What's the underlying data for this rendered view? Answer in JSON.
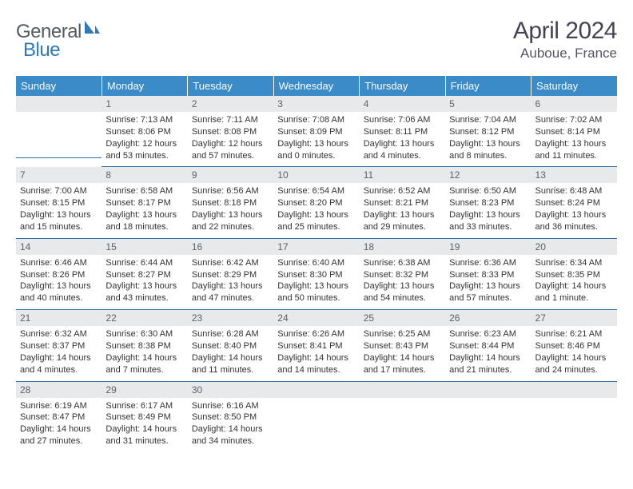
{
  "logo": {
    "text1": "General",
    "text2": "Blue",
    "shape_color": "#2e79b8"
  },
  "title": "April 2024",
  "location": "Auboue, France",
  "palette": {
    "header_bg": "#3b8bc8",
    "header_text": "#ffffff",
    "daynum_bg": "#e7e9eb",
    "daynum_text": "#5b6268",
    "rule_color": "#2f6fa4",
    "body_text": "#333333"
  },
  "day_headers": [
    "Sunday",
    "Monday",
    "Tuesday",
    "Wednesday",
    "Thursday",
    "Friday",
    "Saturday"
  ],
  "weeks": [
    [
      {
        "n": "",
        "sr": "",
        "ss": "",
        "dl": ""
      },
      {
        "n": "1",
        "sr": "Sunrise: 7:13 AM",
        "ss": "Sunset: 8:06 PM",
        "dl": "Daylight: 12 hours and 53 minutes."
      },
      {
        "n": "2",
        "sr": "Sunrise: 7:11 AM",
        "ss": "Sunset: 8:08 PM",
        "dl": "Daylight: 12 hours and 57 minutes."
      },
      {
        "n": "3",
        "sr": "Sunrise: 7:08 AM",
        "ss": "Sunset: 8:09 PM",
        "dl": "Daylight: 13 hours and 0 minutes."
      },
      {
        "n": "4",
        "sr": "Sunrise: 7:06 AM",
        "ss": "Sunset: 8:11 PM",
        "dl": "Daylight: 13 hours and 4 minutes."
      },
      {
        "n": "5",
        "sr": "Sunrise: 7:04 AM",
        "ss": "Sunset: 8:12 PM",
        "dl": "Daylight: 13 hours and 8 minutes."
      },
      {
        "n": "6",
        "sr": "Sunrise: 7:02 AM",
        "ss": "Sunset: 8:14 PM",
        "dl": "Daylight: 13 hours and 11 minutes."
      }
    ],
    [
      {
        "n": "7",
        "sr": "Sunrise: 7:00 AM",
        "ss": "Sunset: 8:15 PM",
        "dl": "Daylight: 13 hours and 15 minutes."
      },
      {
        "n": "8",
        "sr": "Sunrise: 6:58 AM",
        "ss": "Sunset: 8:17 PM",
        "dl": "Daylight: 13 hours and 18 minutes."
      },
      {
        "n": "9",
        "sr": "Sunrise: 6:56 AM",
        "ss": "Sunset: 8:18 PM",
        "dl": "Daylight: 13 hours and 22 minutes."
      },
      {
        "n": "10",
        "sr": "Sunrise: 6:54 AM",
        "ss": "Sunset: 8:20 PM",
        "dl": "Daylight: 13 hours and 25 minutes."
      },
      {
        "n": "11",
        "sr": "Sunrise: 6:52 AM",
        "ss": "Sunset: 8:21 PM",
        "dl": "Daylight: 13 hours and 29 minutes."
      },
      {
        "n": "12",
        "sr": "Sunrise: 6:50 AM",
        "ss": "Sunset: 8:23 PM",
        "dl": "Daylight: 13 hours and 33 minutes."
      },
      {
        "n": "13",
        "sr": "Sunrise: 6:48 AM",
        "ss": "Sunset: 8:24 PM",
        "dl": "Daylight: 13 hours and 36 minutes."
      }
    ],
    [
      {
        "n": "14",
        "sr": "Sunrise: 6:46 AM",
        "ss": "Sunset: 8:26 PM",
        "dl": "Daylight: 13 hours and 40 minutes."
      },
      {
        "n": "15",
        "sr": "Sunrise: 6:44 AM",
        "ss": "Sunset: 8:27 PM",
        "dl": "Daylight: 13 hours and 43 minutes."
      },
      {
        "n": "16",
        "sr": "Sunrise: 6:42 AM",
        "ss": "Sunset: 8:29 PM",
        "dl": "Daylight: 13 hours and 47 minutes."
      },
      {
        "n": "17",
        "sr": "Sunrise: 6:40 AM",
        "ss": "Sunset: 8:30 PM",
        "dl": "Daylight: 13 hours and 50 minutes."
      },
      {
        "n": "18",
        "sr": "Sunrise: 6:38 AM",
        "ss": "Sunset: 8:32 PM",
        "dl": "Daylight: 13 hours and 54 minutes."
      },
      {
        "n": "19",
        "sr": "Sunrise: 6:36 AM",
        "ss": "Sunset: 8:33 PM",
        "dl": "Daylight: 13 hours and 57 minutes."
      },
      {
        "n": "20",
        "sr": "Sunrise: 6:34 AM",
        "ss": "Sunset: 8:35 PM",
        "dl": "Daylight: 14 hours and 1 minute."
      }
    ],
    [
      {
        "n": "21",
        "sr": "Sunrise: 6:32 AM",
        "ss": "Sunset: 8:37 PM",
        "dl": "Daylight: 14 hours and 4 minutes."
      },
      {
        "n": "22",
        "sr": "Sunrise: 6:30 AM",
        "ss": "Sunset: 8:38 PM",
        "dl": "Daylight: 14 hours and 7 minutes."
      },
      {
        "n": "23",
        "sr": "Sunrise: 6:28 AM",
        "ss": "Sunset: 8:40 PM",
        "dl": "Daylight: 14 hours and 11 minutes."
      },
      {
        "n": "24",
        "sr": "Sunrise: 6:26 AM",
        "ss": "Sunset: 8:41 PM",
        "dl": "Daylight: 14 hours and 14 minutes."
      },
      {
        "n": "25",
        "sr": "Sunrise: 6:25 AM",
        "ss": "Sunset: 8:43 PM",
        "dl": "Daylight: 14 hours and 17 minutes."
      },
      {
        "n": "26",
        "sr": "Sunrise: 6:23 AM",
        "ss": "Sunset: 8:44 PM",
        "dl": "Daylight: 14 hours and 21 minutes."
      },
      {
        "n": "27",
        "sr": "Sunrise: 6:21 AM",
        "ss": "Sunset: 8:46 PM",
        "dl": "Daylight: 14 hours and 24 minutes."
      }
    ],
    [
      {
        "n": "28",
        "sr": "Sunrise: 6:19 AM",
        "ss": "Sunset: 8:47 PM",
        "dl": "Daylight: 14 hours and 27 minutes."
      },
      {
        "n": "29",
        "sr": "Sunrise: 6:17 AM",
        "ss": "Sunset: 8:49 PM",
        "dl": "Daylight: 14 hours and 31 minutes."
      },
      {
        "n": "30",
        "sr": "Sunrise: 6:16 AM",
        "ss": "Sunset: 8:50 PM",
        "dl": "Daylight: 14 hours and 34 minutes."
      },
      {
        "n": "",
        "sr": "",
        "ss": "",
        "dl": ""
      },
      {
        "n": "",
        "sr": "",
        "ss": "",
        "dl": ""
      },
      {
        "n": "",
        "sr": "",
        "ss": "",
        "dl": ""
      },
      {
        "n": "",
        "sr": "",
        "ss": "",
        "dl": ""
      }
    ]
  ]
}
